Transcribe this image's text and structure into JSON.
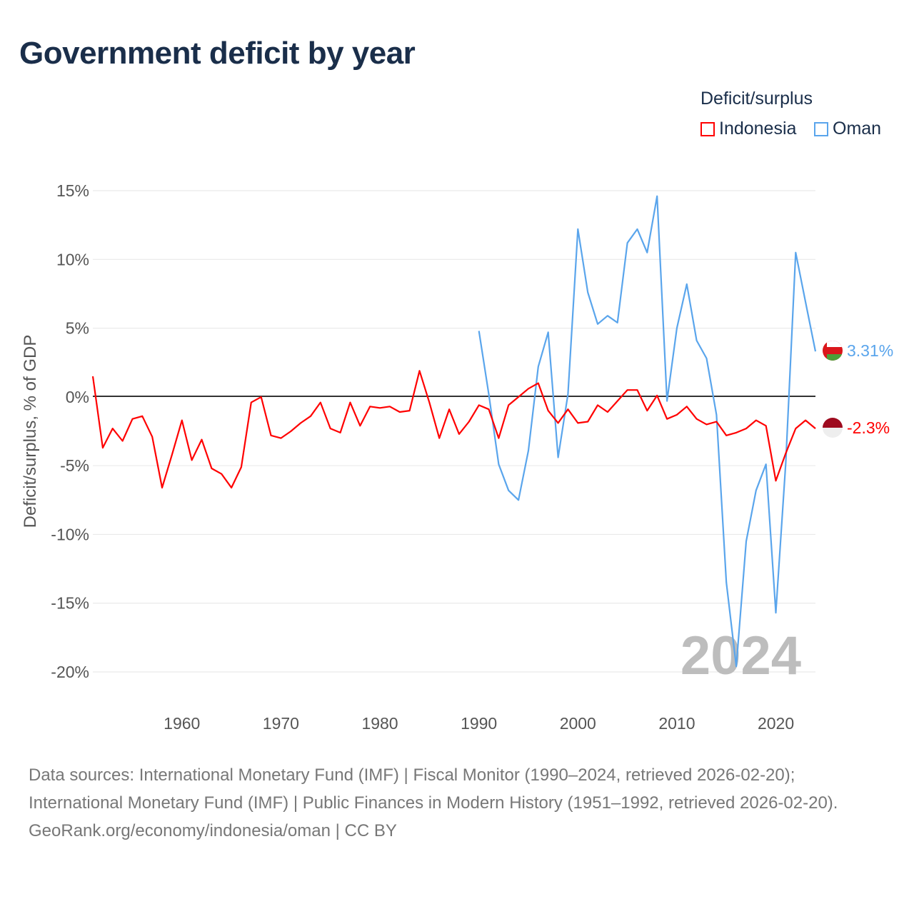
{
  "title": "Government deficit by year",
  "legend": {
    "title": "Deficit/surplus",
    "items": [
      {
        "label": "Indonesia",
        "color": "#ff0000"
      },
      {
        "label": "Oman",
        "color": "#5aa5ec"
      }
    ]
  },
  "watermark_year": "2024",
  "end_labels": {
    "indonesia": "-2.3%",
    "oman": "3.31%"
  },
  "footer": {
    "sources": "Data sources: International Monetary Fund (IMF) | Fiscal Monitor (1990–2024, retrieved 2026-02-20); International Monetary Fund (IMF) | Public Finances in Modern History (1951–1992, retrieved 2026-02-20).",
    "credit": "GeoRank.org/economy/indonesia/oman | CC BY"
  },
  "chart_data": {
    "type": "line",
    "title": "Government deficit by year",
    "xlabel": "",
    "ylabel": "Deficit/surplus, % of GDP",
    "xlim": [
      1951,
      2024
    ],
    "ylim": [
      -20,
      15
    ],
    "xticks": [
      1960,
      1970,
      1980,
      1990,
      2000,
      2010,
      2020
    ],
    "yticks": [
      15,
      10,
      5,
      0,
      -5,
      -10,
      -15,
      -20
    ],
    "ytick_labels": [
      "15%",
      "10%",
      "5%",
      "0%",
      "-5%",
      "-10%",
      "-15%",
      "-20%"
    ],
    "grid": true,
    "legend_position": "top-right",
    "series": [
      {
        "name": "Indonesia",
        "color": "#ff0000",
        "start_year": 1951,
        "values": [
          1.5,
          -3.7,
          -2.3,
          -3.2,
          -1.6,
          -1.4,
          -2.9,
          -6.6,
          -4.2,
          -1.7,
          -4.6,
          -3.1,
          -5.2,
          -5.6,
          -6.6,
          -5.1,
          -0.4,
          0,
          -2.8,
          -3.0,
          -2.5,
          -1.9,
          -1.4,
          -0.4,
          -2.3,
          -2.6,
          -0.4,
          -2.1,
          -0.7,
          -0.8,
          -0.7,
          -1.1,
          -1.0,
          1.9,
          -0.4,
          -3.0,
          -0.9,
          -2.7,
          -1.8,
          -0.6,
          -0.9,
          -3.0,
          -0.6,
          0,
          0.6,
          1.0,
          -1.0,
          -1.9,
          -0.9,
          -1.9,
          -1.8,
          -0.6,
          -1.1,
          -0.3,
          0.5,
          0.5,
          -1.0,
          0.1,
          -1.6,
          -1.3,
          -0.7,
          -1.6,
          -2.0,
          -1.8,
          -2.8,
          -2.6,
          -2.3,
          -1.7,
          -2.1,
          -6.1,
          -4.1,
          -2.3,
          -1.7,
          -2.3
        ]
      },
      {
        "name": "Oman",
        "color": "#5aa5ec",
        "start_year": 1990,
        "values": [
          4.8,
          0.2,
          -4.9,
          -6.8,
          -7.5,
          -3.9,
          2.2,
          4.7,
          -4.4,
          0.2,
          12.2,
          7.6,
          5.3,
          5.9,
          5.4,
          11.2,
          12.2,
          10.5,
          14.6,
          -0.3,
          5.0,
          8.2,
          4.1,
          2.8,
          -1.3,
          -13.5,
          -19.6,
          -10.5,
          -6.8,
          -4.9,
          -15.7,
          -4.8,
          10.5,
          6.9,
          3.31
        ]
      }
    ]
  }
}
